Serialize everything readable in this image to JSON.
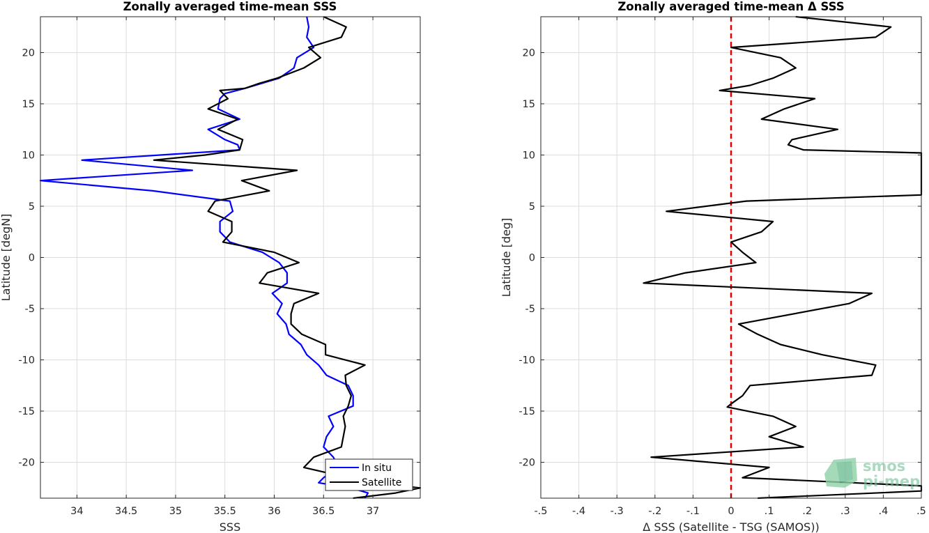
{
  "chart_data": [
    {
      "type": "line",
      "title": "Zonally averaged time-mean SSS",
      "xlabel": "SSS",
      "ylabel": "Latitude [degN]",
      "xlim": [
        33.63,
        37.48
      ],
      "ylim": [
        -23.5,
        23.5
      ],
      "xticks": [
        34,
        34.5,
        35,
        35.5,
        36,
        36.5,
        37
      ],
      "yticks": [
        -20,
        -15,
        -10,
        -5,
        0,
        5,
        10,
        15,
        20
      ],
      "grid": true,
      "legend_position": "bottom-right",
      "series": [
        {
          "name": "In situ",
          "color": "#0000ff",
          "points": [
            [
              36.33,
              23.5
            ],
            [
              36.35,
              22.5
            ],
            [
              36.33,
              21.5
            ],
            [
              36.4,
              20.5
            ],
            [
              36.23,
              19.5
            ],
            [
              36.2,
              18.5
            ],
            [
              36.05,
              17.5
            ],
            [
              35.7,
              16.5
            ],
            [
              35.5,
              16.0
            ],
            [
              35.45,
              15.5
            ],
            [
              35.43,
              14.5
            ],
            [
              35.65,
              13.5
            ],
            [
              35.33,
              12.5
            ],
            [
              35.5,
              11.5
            ],
            [
              35.63,
              11.0
            ],
            [
              35.65,
              10.5
            ],
            [
              34.05,
              9.5
            ],
            [
              35.17,
              8.5
            ],
            [
              33.63,
              7.5
            ],
            [
              34.77,
              6.5
            ],
            [
              35.55,
              5.5
            ],
            [
              35.58,
              4.5
            ],
            [
              35.45,
              3.5
            ],
            [
              35.45,
              2.5
            ],
            [
              35.55,
              1.5
            ],
            [
              35.88,
              0.5
            ],
            [
              36.05,
              -0.5
            ],
            [
              36.13,
              -1.5
            ],
            [
              36.13,
              -2.5
            ],
            [
              35.98,
              -3.5
            ],
            [
              36.08,
              -4.5
            ],
            [
              36.03,
              -5.5
            ],
            [
              36.12,
              -6.5
            ],
            [
              36.15,
              -7.5
            ],
            [
              36.27,
              -8.5
            ],
            [
              36.33,
              -9.5
            ],
            [
              36.45,
              -10.5
            ],
            [
              36.53,
              -11.5
            ],
            [
              36.75,
              -12.5
            ],
            [
              36.8,
              -13.5
            ],
            [
              36.8,
              -14.5
            ],
            [
              36.55,
              -15.5
            ],
            [
              36.6,
              -16.5
            ],
            [
              36.53,
              -17.5
            ],
            [
              36.5,
              -18.5
            ],
            [
              36.6,
              -19.5
            ],
            [
              36.65,
              -20.5
            ],
            [
              36.5,
              -21.5
            ],
            [
              36.45,
              -22.0
            ],
            [
              36.78,
              -22.5
            ],
            [
              36.95,
              -23.0
            ],
            [
              36.92,
              -23.5
            ]
          ]
        },
        {
          "name": "Satellite",
          "color": "#000000",
          "points": [
            [
              36.5,
              23.5
            ],
            [
              36.73,
              22.5
            ],
            [
              36.68,
              21.5
            ],
            [
              36.35,
              20.5
            ],
            [
              36.47,
              19.5
            ],
            [
              36.3,
              18.5
            ],
            [
              36.03,
              17.5
            ],
            [
              35.85,
              17.0
            ],
            [
              35.7,
              16.5
            ],
            [
              35.45,
              16.3
            ],
            [
              35.53,
              15.5
            ],
            [
              35.33,
              14.5
            ],
            [
              35.63,
              13.5
            ],
            [
              35.43,
              12.5
            ],
            [
              35.68,
              11.5
            ],
            [
              35.65,
              10.5
            ],
            [
              35.3,
              10.0
            ],
            [
              34.78,
              9.5
            ],
            [
              36.23,
              8.5
            ],
            [
              35.67,
              7.5
            ],
            [
              35.95,
              6.5
            ],
            [
              35.4,
              5.5
            ],
            [
              35.33,
              4.5
            ],
            [
              35.57,
              3.5
            ],
            [
              35.57,
              2.5
            ],
            [
              35.48,
              1.5
            ],
            [
              36.0,
              0.5
            ],
            [
              36.25,
              -0.5
            ],
            [
              35.93,
              -1.5
            ],
            [
              35.85,
              -2.5
            ],
            [
              36.45,
              -3.5
            ],
            [
              36.2,
              -4.5
            ],
            [
              36.17,
              -5.5
            ],
            [
              36.17,
              -6.5
            ],
            [
              36.28,
              -7.5
            ],
            [
              36.52,
              -8.5
            ],
            [
              36.52,
              -9.5
            ],
            [
              36.92,
              -10.5
            ],
            [
              36.72,
              -11.5
            ],
            [
              36.73,
              -12.5
            ],
            [
              36.78,
              -13.5
            ],
            [
              36.75,
              -14.5
            ],
            [
              36.7,
              -15.5
            ],
            [
              36.72,
              -16.5
            ],
            [
              36.7,
              -17.5
            ],
            [
              36.68,
              -18.5
            ],
            [
              36.4,
              -19.5
            ],
            [
              36.3,
              -20.5
            ],
            [
              36.75,
              -21.5
            ],
            [
              37.0,
              -22.0
            ],
            [
              37.48,
              -22.5
            ],
            [
              37.23,
              -23.0
            ],
            [
              36.8,
              -23.5
            ]
          ]
        }
      ]
    },
    {
      "type": "line",
      "title": "Zonally averaged time-mean Δ SSS",
      "xlabel": "Δ SSS (Satellite - TSG (SAMOS))",
      "ylabel": "Latitude [deg]",
      "xlim": [
        -0.5,
        0.5
      ],
      "ylim": [
        -23.5,
        23.5
      ],
      "xticks": [
        -0.5,
        -0.4,
        -0.3,
        -0.2,
        -0.1,
        0,
        0.1,
        0.2,
        0.3,
        0.4,
        0.5
      ],
      "yticks": [
        -20,
        -15,
        -10,
        -5,
        0,
        5,
        10,
        15,
        20
      ],
      "grid": true,
      "reference_line": {
        "x": 0,
        "color": "#e00000",
        "style": "dashed"
      },
      "series": [
        {
          "color": "#000000",
          "points": [
            [
              0.17,
              23.5
            ],
            [
              0.42,
              22.5
            ],
            [
              0.38,
              21.5
            ],
            [
              0.0,
              20.5
            ],
            [
              0.13,
              19.5
            ],
            [
              0.17,
              18.5
            ],
            [
              0.11,
              17.5
            ],
            [
              0.05,
              16.8
            ],
            [
              -0.03,
              16.3
            ],
            [
              0.22,
              15.5
            ],
            [
              0.14,
              14.5
            ],
            [
              0.08,
              13.5
            ],
            [
              0.28,
              12.5
            ],
            [
              0.16,
              11.5
            ],
            [
              0.15,
              11.0
            ],
            [
              0.19,
              10.5
            ],
            [
              0.5,
              10.2
            ],
            [
              0.5,
              6.1
            ],
            [
              0.04,
              5.5
            ],
            [
              -0.17,
              4.5
            ],
            [
              0.11,
              3.5
            ],
            [
              0.08,
              2.5
            ],
            [
              0.0,
              1.5
            ],
            [
              0.03,
              0.5
            ],
            [
              0.065,
              -0.5
            ],
            [
              -0.12,
              -1.5
            ],
            [
              -0.23,
              -2.5
            ],
            [
              0.37,
              -3.5
            ],
            [
              0.31,
              -4.5
            ],
            [
              0.02,
              -6.5
            ],
            [
              0.07,
              -7.5
            ],
            [
              0.13,
              -8.5
            ],
            [
              0.24,
              -9.5
            ],
            [
              0.38,
              -10.5
            ],
            [
              0.37,
              -11.5
            ],
            [
              0.05,
              -12.5
            ],
            [
              0.03,
              -13.5
            ],
            [
              0.0,
              -14.3
            ],
            [
              -0.01,
              -14.6
            ],
            [
              0.11,
              -15.5
            ],
            [
              0.17,
              -16.5
            ],
            [
              0.1,
              -17.5
            ],
            [
              0.19,
              -18.5
            ],
            [
              -0.21,
              -19.5
            ],
            [
              0.1,
              -20.5
            ],
            [
              0.03,
              -21.5
            ],
            [
              0.5,
              -22.3
            ],
            [
              0.5,
              -22.8
            ],
            [
              0.07,
              -23.5
            ]
          ]
        }
      ]
    }
  ],
  "legend": {
    "items": [
      "In situ",
      "Satellite"
    ]
  },
  "watermark": {
    "line1": "smos",
    "line2": "pi-mep",
    "color": "#6fbf95"
  }
}
